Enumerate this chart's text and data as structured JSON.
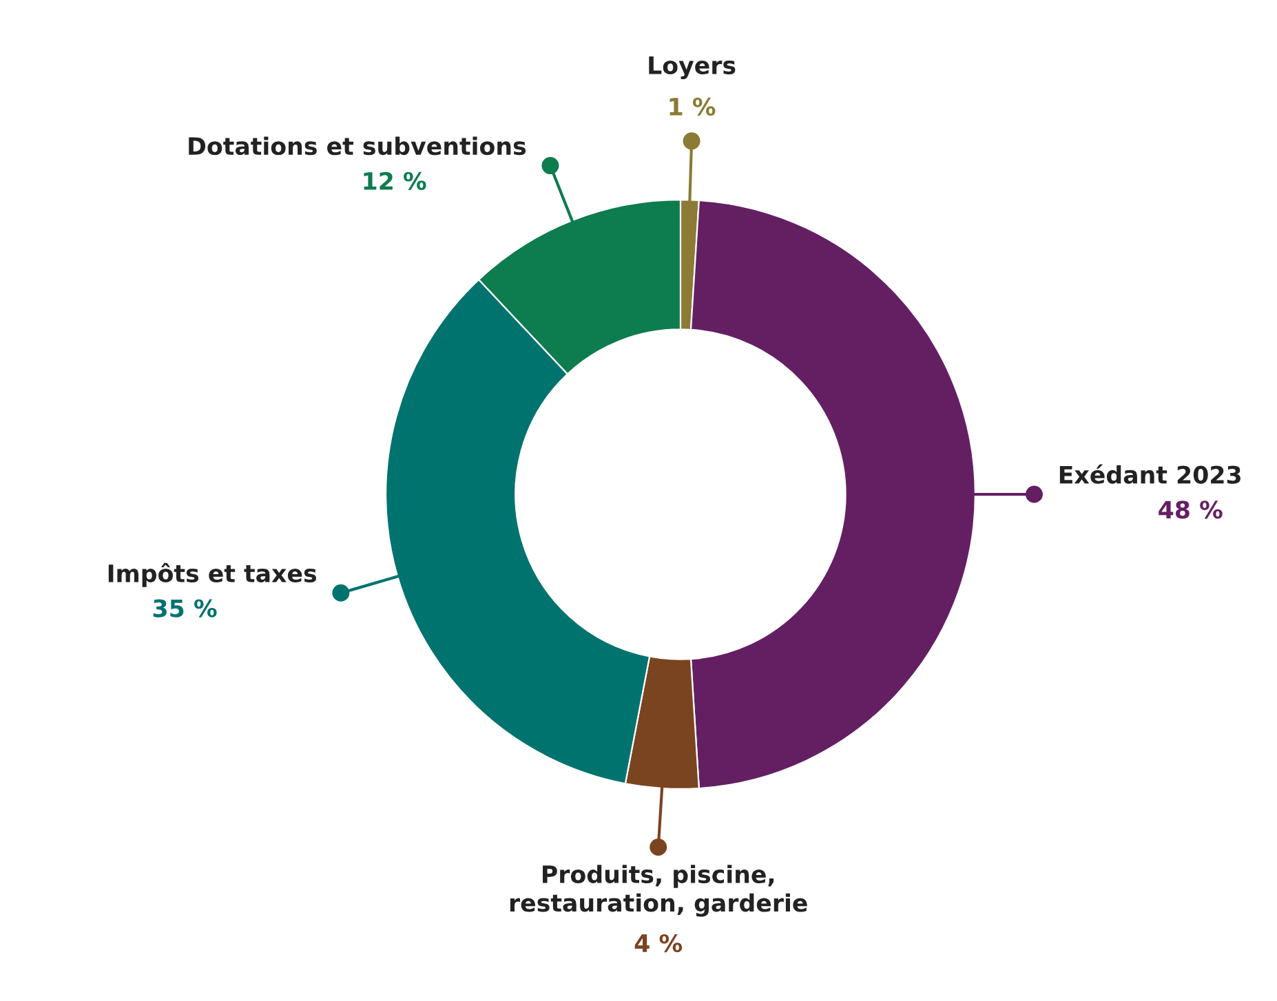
{
  "chart_data": {
    "type": "donut",
    "categories": [
      "Loyers",
      "Exédant 2023",
      "Produits, piscine, restauration, garderie",
      "Impôts et taxes",
      "Dotations et subventions"
    ],
    "values": [
      1,
      48,
      4,
      35,
      12
    ],
    "value_labels": [
      "1 %",
      "48 %",
      "4 %",
      "35 %",
      "12 %"
    ],
    "colors": [
      "#8c7a35",
      "#641f63",
      "#7b4420",
      "#00736f",
      "#0d7c4e"
    ]
  }
}
